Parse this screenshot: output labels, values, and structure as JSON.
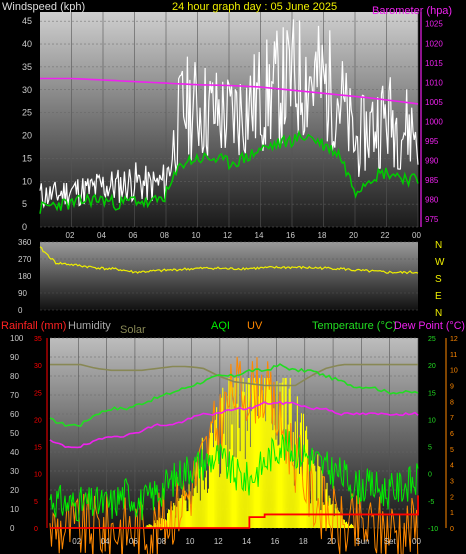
{
  "header": {
    "left_title": "Windspeed (kph)",
    "center_title": "24 hour graph day : 05 June 2025",
    "right_title": "Barometer (hpa)"
  },
  "time_labels": [
    "02",
    "04",
    "06",
    "08",
    "10",
    "12",
    "14",
    "16",
    "18",
    "20",
    "22",
    "00"
  ],
  "bottom_time_labels": [
    "02",
    "04",
    "06",
    "08",
    "10",
    "12",
    "14",
    "16",
    "18",
    "20",
    "Sun",
    "Set",
    "00"
  ],
  "colors": {
    "wind": "#ffffff",
    "wind_avg": "#00cc00",
    "barometer": "#ee22ee",
    "direction": "#eeee00",
    "temperature": "#22dd22",
    "dewpoint": "#ee22ee",
    "humidity": "#888855",
    "solar": "#ffff00",
    "uv": "#ff8800",
    "rain": "#ff0000",
    "aqi": "#00ee00",
    "axis_text": "#cccccc",
    "title_yellow": "#eeee00"
  },
  "panel1": {
    "wind_ticks": [
      "45",
      "40",
      "35",
      "30",
      "25",
      "20",
      "15",
      "10",
      "5",
      "0"
    ],
    "baro_ticks": [
      "1025",
      "1020",
      "1015",
      "1010",
      "1005",
      "1000",
      "995",
      "990",
      "985",
      "980",
      "975"
    ]
  },
  "panel2": {
    "deg_ticks": [
      "360",
      "270",
      "180",
      "90",
      "0"
    ],
    "compass": [
      "N",
      "W",
      "S",
      "E",
      "N"
    ]
  },
  "panel3": {
    "labels": {
      "rainfall": "Rainfall (mm)",
      "humidity": "Humidity",
      "solar": "Solar",
      "aqi": "AQI",
      "uv": "UV",
      "temperature": "Temperature (°C)",
      "dewpoint": "Dew Point (°C)"
    },
    "humidity_ticks": [
      "100",
      "90",
      "80",
      "70",
      "60",
      "50",
      "40",
      "30",
      "20",
      "10",
      "0"
    ],
    "rain_ticks": [
      "35",
      "30",
      "25",
      "20",
      "15",
      "10",
      "5",
      "0"
    ],
    "temp_ticks": [
      "25",
      "20",
      "15",
      "10",
      "5",
      "0",
      "-5",
      "-10"
    ],
    "uv_ticks": [
      "12",
      "11",
      "10",
      "9",
      "8",
      "7",
      "6",
      "5",
      "4",
      "3",
      "2",
      "1",
      "0"
    ]
  },
  "chart_data": [
    {
      "type": "line",
      "title": "24 hour graph day : 05 June 2025",
      "xlabel": "",
      "ylabel": "Windspeed (kph)",
      "y2label": "Barometer (hpa)",
      "x": [
        0,
        1,
        2,
        3,
        4,
        5,
        6,
        7,
        8,
        9,
        10,
        11,
        12,
        13,
        14,
        15,
        16,
        17,
        18,
        19,
        20,
        21,
        22,
        23,
        24
      ],
      "ylim": [
        0,
        47
      ],
      "y2lim": [
        973,
        1028
      ],
      "series": [
        {
          "name": "Windspeed (kph)",
          "values": [
            7,
            7,
            8,
            8,
            9,
            9,
            10,
            9,
            10,
            26,
            26,
            25,
            24,
            26,
            28,
            30,
            32,
            33,
            31,
            29,
            18,
            22,
            24,
            22,
            21
          ]
        },
        {
          "name": "",
          "values": [
            4,
            5,
            5,
            6,
            6,
            5,
            6,
            5,
            7,
            14,
            15,
            15,
            14,
            15,
            17,
            18,
            19,
            20,
            18,
            16,
            8,
            11,
            12,
            11,
            10
          ]
        },
        {
          "name": "Barometer (hpa)",
          "values": [
            1011,
            1011,
            1011,
            1010.8,
            1010.6,
            1010.4,
            1010.2,
            1010,
            1009.8,
            1009.6,
            1009.4,
            1009.3,
            1009.2,
            1009,
            1008.8,
            1008.4,
            1008,
            1007.6,
            1007.2,
            1006.8,
            1006.4,
            1006,
            1005.5,
            1005,
            1004.5
          ]
        }
      ]
    },
    {
      "type": "line",
      "title": "",
      "ylabel": "",
      "x": [
        0,
        1,
        2,
        3,
        4,
        5,
        6,
        7,
        8,
        9,
        10,
        11,
        12,
        13,
        14,
        15,
        16,
        17,
        18,
        19,
        20,
        21,
        22,
        23,
        24
      ],
      "ylim": [
        0,
        360
      ],
      "series": [
        {
          "name": "",
          "values": [
            330,
            250,
            240,
            230,
            220,
            215,
            200,
            205,
            210,
            215,
            220,
            222,
            218,
            220,
            222,
            225,
            226,
            224,
            222,
            220,
            210,
            205,
            200,
            198,
            200
          ]
        }
      ]
    },
    {
      "type": "line",
      "title": "",
      "x": [
        0,
        1,
        2,
        3,
        4,
        5,
        6,
        7,
        8,
        9,
        10,
        11,
        12,
        13,
        14,
        15,
        16,
        17,
        18,
        19,
        20,
        21,
        22,
        23,
        24
      ],
      "ylim": [
        0,
        100
      ],
      "series": [
        {
          "name": "Temperature (°C)",
          "values": [
            10,
            9,
            9,
            11,
            12,
            12,
            13,
            14,
            15,
            16,
            17,
            18,
            18,
            19,
            19,
            20,
            19,
            19,
            18,
            17,
            16,
            16,
            15,
            15,
            15
          ]
        },
        {
          "name": "Dew Point (°C)",
          "values": [
            6,
            5,
            5,
            6,
            7,
            7,
            8,
            9,
            9,
            10,
            11,
            11,
            12,
            12,
            13,
            13,
            13,
            12,
            12,
            11,
            11,
            11,
            11,
            11,
            11
          ]
        },
        {
          "name": "Humidity",
          "values": [
            86,
            86,
            86,
            84,
            83,
            83,
            83,
            84,
            85,
            85,
            84,
            80,
            77,
            76,
            75,
            75,
            75,
            80,
            84,
            86,
            86,
            86,
            86,
            86,
            86
          ]
        },
        {
          "name": "Solar",
          "values": [
            0,
            0,
            0,
            0,
            0,
            0,
            0,
            2,
            5,
            10,
            20,
            30,
            45,
            55,
            50,
            45,
            30,
            20,
            10,
            3,
            0,
            0,
            0,
            0,
            0
          ]
        },
        {
          "name": "UV",
          "values": [
            0,
            0,
            0,
            0,
            0,
            0,
            0,
            0,
            0.5,
            1,
            2,
            3,
            4,
            4,
            4,
            3,
            2,
            1,
            0.5,
            0,
            0,
            0,
            0,
            0,
            0
          ]
        },
        {
          "name": "Rainfall (mm)",
          "values": [
            0,
            0,
            0,
            0,
            0,
            0,
            0,
            0,
            0,
            0,
            0,
            0,
            0,
            2,
            2.5,
            2.5,
            2.5,
            2.5,
            2.5,
            2.5,
            2.5,
            2.5,
            2.5,
            2.5,
            6
          ]
        },
        {
          "name": "AQI",
          "values": [
            5,
            4,
            4,
            4,
            4,
            6,
            4,
            6,
            8,
            10,
            11,
            12,
            9,
            8,
            11,
            14,
            13,
            12,
            10,
            9,
            7,
            7,
            6,
            7,
            8
          ]
        }
      ]
    }
  ]
}
